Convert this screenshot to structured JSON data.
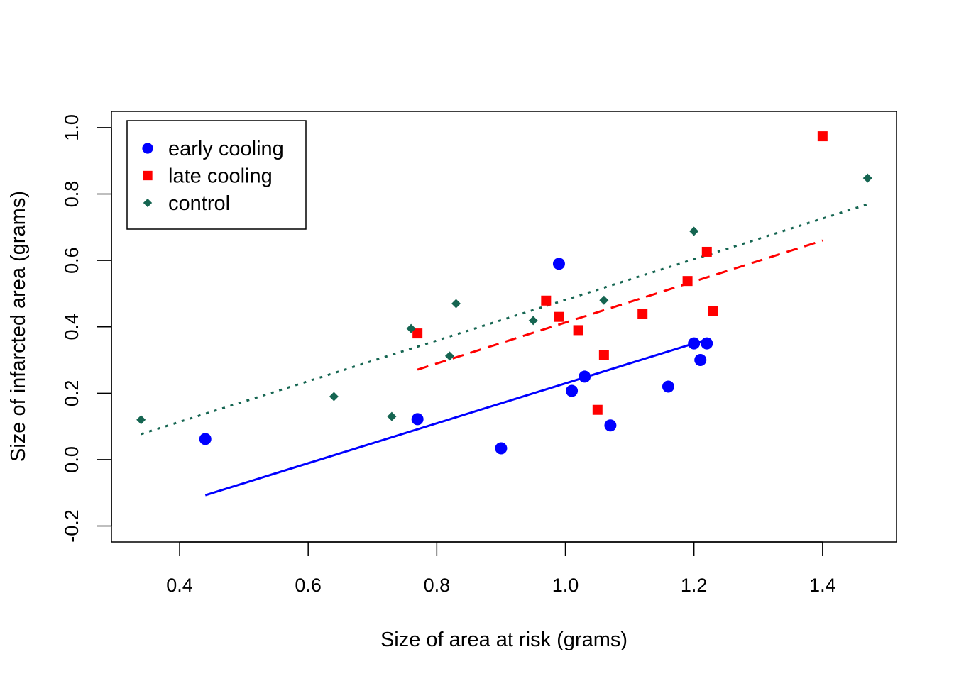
{
  "chart_data": {
    "type": "scatter",
    "title": "",
    "xlabel": "Size of area at risk (grams)",
    "ylabel": "Size of infarcted area (grams)",
    "xlim": [
      0.294,
      1.515
    ],
    "ylim": [
      -0.248,
      1.049
    ],
    "xticks": [
      "0.4",
      "0.6",
      "0.8",
      "1.0",
      "1.2",
      "1.4"
    ],
    "yticks": [
      "-0.2",
      "0.0",
      "0.2",
      "0.4",
      "0.6",
      "0.8",
      "1.0"
    ],
    "grid": false,
    "legend_position": "top-left",
    "series": [
      {
        "name": "early cooling",
        "color": "#0000ff",
        "marker": "circle",
        "line_style": "solid",
        "x": [
          0.44,
          0.77,
          0.9,
          0.99,
          1.01,
          1.03,
          1.07,
          1.16,
          1.2,
          1.21,
          1.22
        ],
        "y": [
          0.062,
          0.122,
          0.034,
          0.59,
          0.207,
          0.25,
          0.103,
          0.22,
          0.35,
          0.3,
          0.35
        ],
        "fit_line": {
          "x": [
            0.44,
            1.22
          ],
          "y": [
            -0.107,
            0.362
          ]
        }
      },
      {
        "name": "late cooling",
        "color": "#ff0000",
        "marker": "square",
        "line_style": "dashed",
        "x": [
          0.77,
          0.97,
          0.99,
          1.02,
          1.05,
          1.06,
          1.12,
          1.19,
          1.22,
          1.23,
          1.4
        ],
        "y": [
          0.38,
          0.479,
          0.43,
          0.39,
          0.15,
          0.316,
          0.44,
          0.538,
          0.626,
          0.447,
          0.974
        ],
        "fit_line": {
          "x": [
            0.77,
            1.4
          ],
          "y": [
            0.271,
            0.66
          ]
        }
      },
      {
        "name": "control",
        "color": "#156551",
        "marker": "diamond",
        "line_style": "dotted",
        "x": [
          0.34,
          0.64,
          0.73,
          0.76,
          0.82,
          0.83,
          0.95,
          1.06,
          1.2,
          1.47
        ],
        "y": [
          0.12,
          0.19,
          0.13,
          0.395,
          0.312,
          0.47,
          0.419,
          0.48,
          0.688,
          0.848
        ],
        "fit_line": {
          "x": [
            0.34,
            1.47
          ],
          "y": [
            0.077,
            0.769
          ]
        }
      }
    ]
  }
}
